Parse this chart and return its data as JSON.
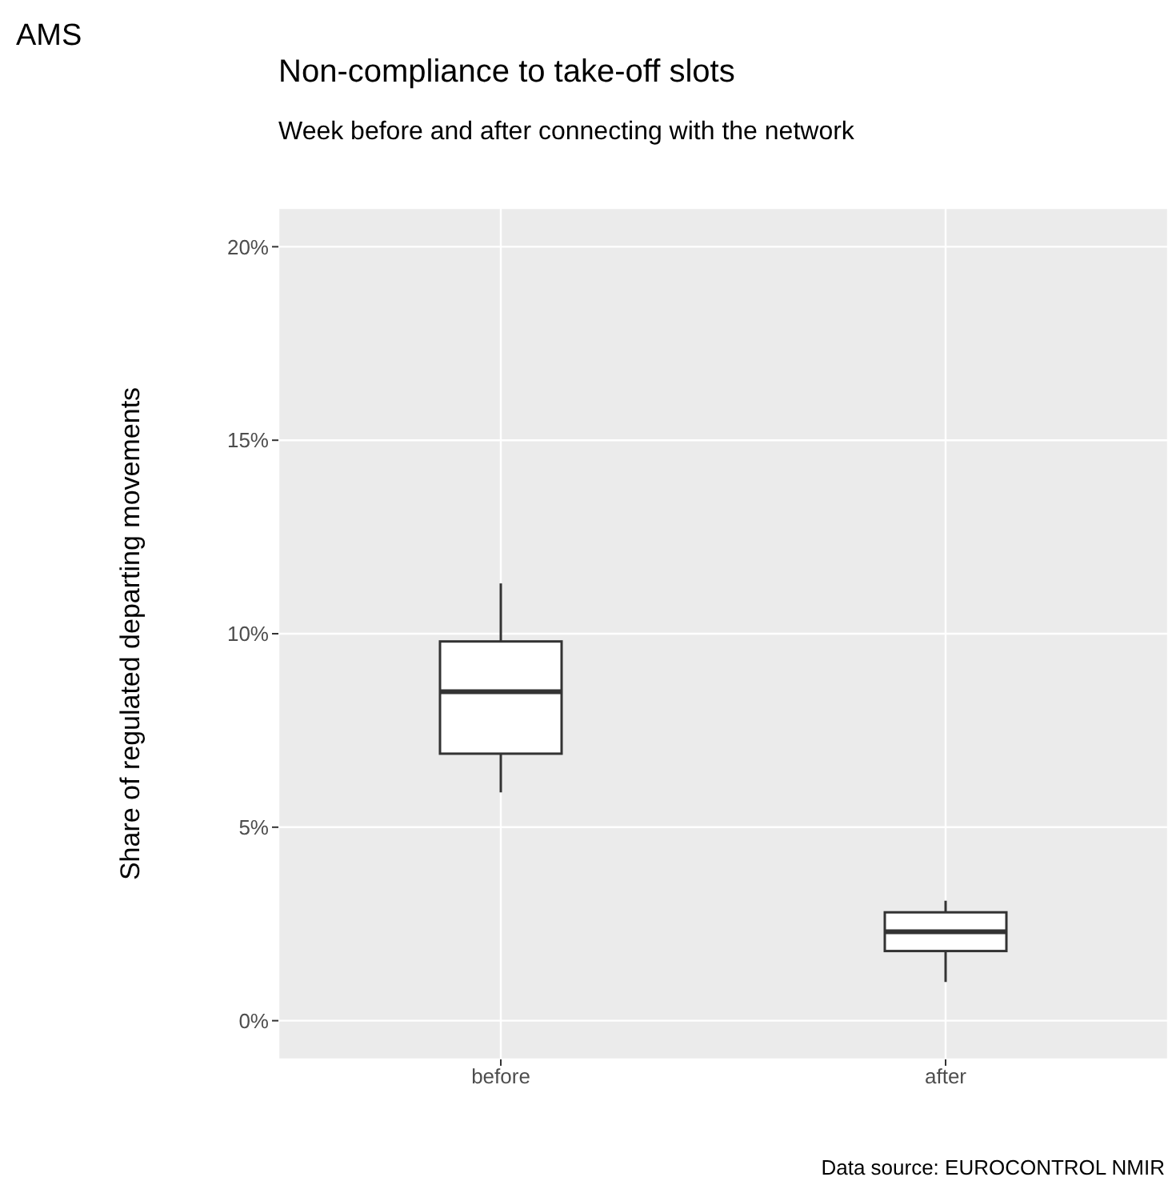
{
  "chart_data": {
    "type": "box",
    "title": "Non-compliance to take-off slots",
    "subtitle": "Week before and after connecting with the network",
    "ylabel": "Share of regulated departing movements",
    "annotations": [
      "AMS",
      "Data source: EUROCONTROL NMIR"
    ],
    "categories": [
      "before",
      "after"
    ],
    "boxes": [
      {
        "low": 5.9,
        "q1": 6.9,
        "median": 8.5,
        "q3": 9.8,
        "high": 11.3
      },
      {
        "low": 1.0,
        "q1": 1.8,
        "median": 2.3,
        "q3": 2.8,
        "high": 3.1
      }
    ],
    "color": "#333333",
    "ylim": [
      -1,
      21
    ],
    "yticks": [
      {
        "value": 0,
        "label": "0%"
      },
      {
        "value": 5,
        "label": "5%"
      },
      {
        "value": 10,
        "label": "10%"
      },
      {
        "value": 15,
        "label": "15%"
      },
      {
        "value": 20,
        "label": "20%"
      }
    ],
    "grid": true
  }
}
